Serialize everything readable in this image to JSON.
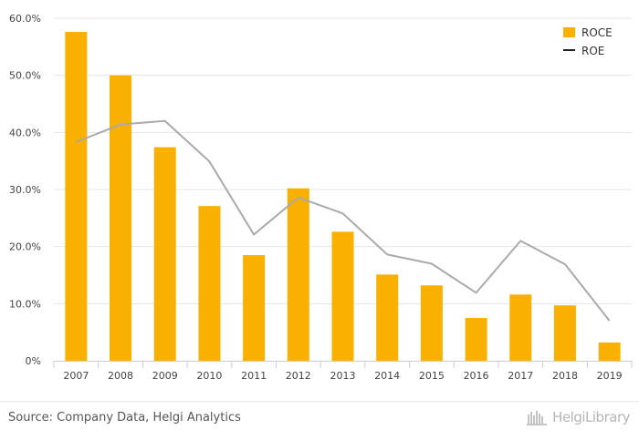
{
  "chart_data": {
    "type": "bar",
    "categories": [
      "2007",
      "2008",
      "2009",
      "2010",
      "2011",
      "2012",
      "2013",
      "2014",
      "2015",
      "2016",
      "2017",
      "2018",
      "2019"
    ],
    "series": [
      {
        "name": "ROCE",
        "type": "bar",
        "color": "#f9b000",
        "values": [
          57.6,
          50.0,
          37.4,
          27.1,
          18.5,
          30.2,
          22.6,
          15.1,
          13.2,
          7.5,
          11.6,
          9.7,
          3.2
        ]
      },
      {
        "name": "ROE",
        "type": "line",
        "color": "#aaaaaa",
        "values": [
          38.3,
          41.4,
          42.0,
          34.9,
          22.1,
          28.6,
          25.8,
          18.6,
          17.0,
          11.9,
          21.0,
          16.9,
          7.0
        ]
      }
    ],
    "y_ticks": [
      "0%",
      "10.0%",
      "20.0%",
      "30.0%",
      "40.0%",
      "50.0%",
      "60.0%"
    ],
    "ylim": [
      0,
      60
    ],
    "grid": true,
    "legend_position": "top-right",
    "legend_swatch_colors": {
      "ROCE": "#f9b000",
      "ROE": "#222222"
    }
  },
  "footer": {
    "source": "Source: Company Data, Helgi Analytics",
    "brand": "HelgiLibrary"
  }
}
